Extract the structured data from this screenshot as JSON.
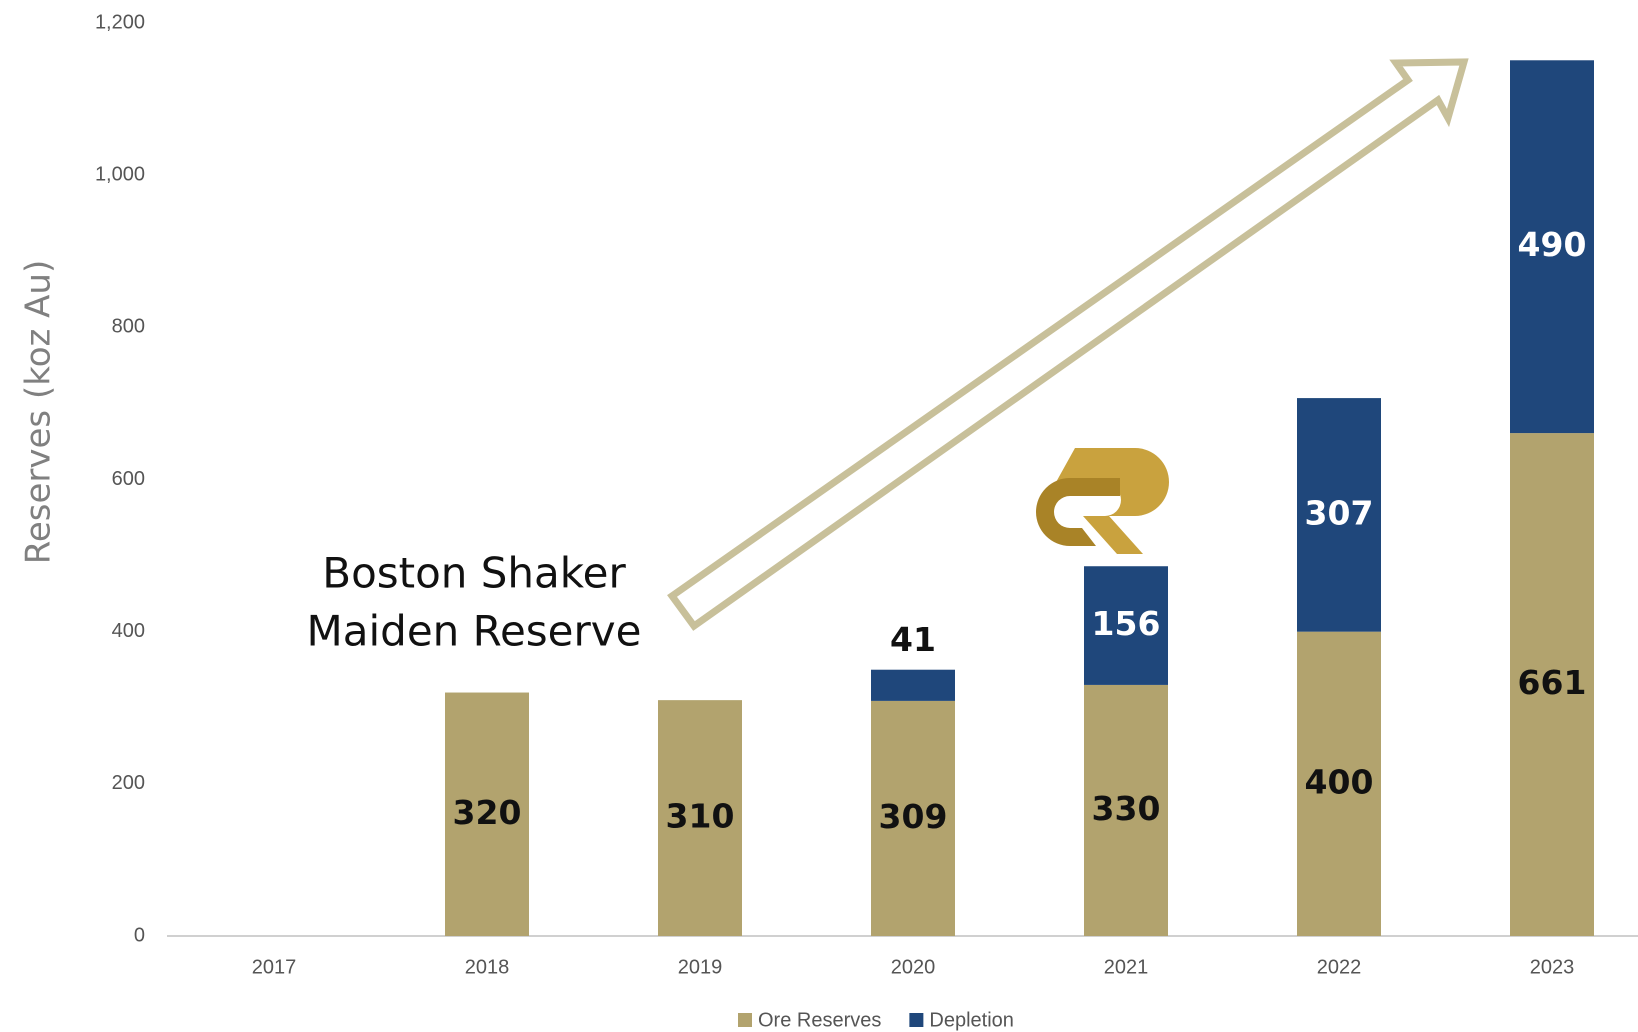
{
  "chart_data": {
    "type": "stacked_bar",
    "y_label": "Reserves (koz Au)",
    "annotation": [
      "Boston Shaker",
      "Maiden Reserve"
    ],
    "categories": [
      "2017",
      "2018",
      "2019",
      "2020",
      "2021",
      "2022",
      "2023"
    ],
    "series": [
      {
        "name": "Ore Reserves",
        "color": "#b2a36e",
        "values": [
          null,
          320,
          310,
          309,
          330,
          400,
          661
        ]
      },
      {
        "name": "Depletion",
        "color": "#1f477b",
        "values": [
          null,
          null,
          null,
          41,
          156,
          307,
          490
        ]
      }
    ],
    "ylim": [
      0,
      1200
    ],
    "yticks": [
      0,
      200,
      400,
      600,
      800,
      {
        "value": 1000,
        "label": "1,000"
      },
      {
        "value": 1200,
        "label": "1,200"
      }
    ],
    "legend": "bottom"
  }
}
